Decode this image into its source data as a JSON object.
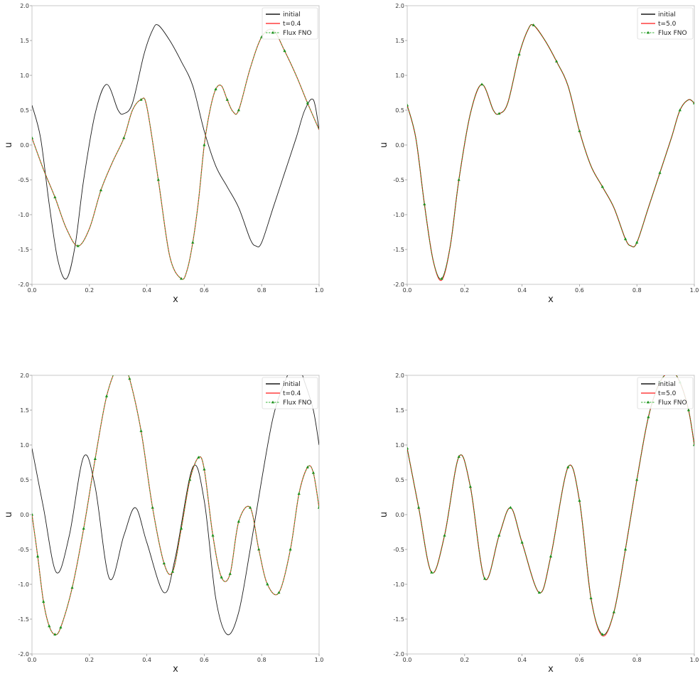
{
  "colors": {
    "initial": "#000000",
    "reference": "#ff0000",
    "fno": "#22aa22",
    "fno_marker": "#1a8f1a",
    "axes": "#999999",
    "frame": "#bbbbbb"
  },
  "chart_data": [
    {
      "type": "line",
      "xlabel": "x",
      "ylabel": "u",
      "xlim": [
        0,
        1
      ],
      "ylim": [
        -2,
        2
      ],
      "xticks": [
        "0.0",
        "0.2",
        "0.4",
        "0.6",
        "0.8",
        "1.0"
      ],
      "yticks": [
        "-2.0",
        "-1.5",
        "-1.0",
        "-0.5",
        "0.0",
        "0.5",
        "1.0",
        "1.5",
        "2.0"
      ],
      "legend_position": "top-right",
      "series": [
        {
          "name": "initial",
          "x": [
            0.0,
            0.03,
            0.06,
            0.09,
            0.12,
            0.15,
            0.18,
            0.22,
            0.26,
            0.3,
            0.32,
            0.35,
            0.39,
            0.42,
            0.44,
            0.48,
            0.52,
            0.56,
            0.6,
            0.64,
            0.68,
            0.72,
            0.76,
            0.78,
            0.8,
            0.84,
            0.88,
            0.92,
            0.95,
            0.98,
            1.0
          ],
          "y": [
            0.57,
            0.1,
            -0.85,
            -1.65,
            -1.92,
            -1.45,
            -0.5,
            0.45,
            0.87,
            0.5,
            0.45,
            0.6,
            1.3,
            1.65,
            1.72,
            1.5,
            1.2,
            0.85,
            0.2,
            -0.3,
            -0.6,
            -0.9,
            -1.35,
            -1.45,
            -1.4,
            -0.9,
            -0.4,
            0.1,
            0.5,
            0.65,
            0.22
          ]
        },
        {
          "name": "t=0.4",
          "x": [
            0.0,
            0.04,
            0.08,
            0.12,
            0.16,
            0.2,
            0.24,
            0.28,
            0.32,
            0.35,
            0.38,
            0.4,
            0.44,
            0.48,
            0.52,
            0.54,
            0.56,
            0.58,
            0.6,
            0.62,
            0.64,
            0.66,
            0.68,
            0.7,
            0.72,
            0.76,
            0.8,
            0.84,
            0.88,
            0.92,
            0.96,
            1.0
          ],
          "y": [
            0.1,
            -0.35,
            -0.75,
            -1.2,
            -1.45,
            -1.2,
            -0.65,
            -0.25,
            0.1,
            0.5,
            0.65,
            0.55,
            -0.5,
            -1.6,
            -1.92,
            -1.8,
            -1.4,
            -0.8,
            0.0,
            0.5,
            0.8,
            0.85,
            0.65,
            0.48,
            0.5,
            1.1,
            1.55,
            1.65,
            1.35,
            1.0,
            0.6,
            0.22
          ]
        },
        {
          "name": "Flux FNO",
          "x": [
            0.0,
            0.04,
            0.08,
            0.12,
            0.16,
            0.2,
            0.24,
            0.28,
            0.32,
            0.35,
            0.38,
            0.4,
            0.44,
            0.48,
            0.52,
            0.54,
            0.56,
            0.58,
            0.6,
            0.62,
            0.64,
            0.66,
            0.68,
            0.7,
            0.72,
            0.76,
            0.8,
            0.84,
            0.88,
            0.92,
            0.96,
            1.0
          ],
          "y": [
            0.1,
            -0.35,
            -0.75,
            -1.2,
            -1.45,
            -1.2,
            -0.65,
            -0.25,
            0.1,
            0.5,
            0.65,
            0.55,
            -0.5,
            -1.6,
            -1.92,
            -1.8,
            -1.4,
            -0.8,
            0.0,
            0.5,
            0.8,
            0.85,
            0.65,
            0.48,
            0.5,
            1.1,
            1.55,
            1.65,
            1.35,
            1.0,
            0.6,
            0.22
          ]
        }
      ]
    },
    {
      "type": "line",
      "xlabel": "x",
      "ylabel": "u",
      "xlim": [
        0,
        1
      ],
      "ylim": [
        -2,
        2
      ],
      "xticks": [
        "0.0",
        "0.2",
        "0.4",
        "0.6",
        "0.8",
        "1.0"
      ],
      "yticks": [
        "-2.0",
        "-1.5",
        "-1.0",
        "-0.5",
        "0.0",
        "0.5",
        "1.0",
        "1.5",
        "2.0"
      ],
      "legend_position": "top-right",
      "series": [
        {
          "name": "initial",
          "x": [
            0.0,
            0.03,
            0.06,
            0.09,
            0.12,
            0.15,
            0.18,
            0.22,
            0.26,
            0.3,
            0.32,
            0.35,
            0.39,
            0.42,
            0.44,
            0.48,
            0.52,
            0.56,
            0.6,
            0.64,
            0.68,
            0.72,
            0.76,
            0.78,
            0.8,
            0.84,
            0.88,
            0.92,
            0.95,
            0.98,
            1.0
          ],
          "y": [
            0.57,
            0.1,
            -0.85,
            -1.65,
            -1.92,
            -1.45,
            -0.5,
            0.45,
            0.87,
            0.5,
            0.45,
            0.6,
            1.3,
            1.65,
            1.72,
            1.5,
            1.2,
            0.85,
            0.2,
            -0.3,
            -0.6,
            -0.9,
            -1.35,
            -1.45,
            -1.4,
            -0.9,
            -0.4,
            0.1,
            0.5,
            0.65,
            0.6
          ]
        },
        {
          "name": "t=5.0",
          "x": [
            0.0,
            0.03,
            0.06,
            0.09,
            0.12,
            0.15,
            0.18,
            0.22,
            0.26,
            0.3,
            0.32,
            0.35,
            0.39,
            0.42,
            0.44,
            0.48,
            0.52,
            0.56,
            0.6,
            0.64,
            0.68,
            0.72,
            0.76,
            0.78,
            0.8,
            0.84,
            0.88,
            0.92,
            0.95,
            0.98,
            1.0
          ],
          "y": [
            0.57,
            0.1,
            -0.85,
            -1.65,
            -1.94,
            -1.45,
            -0.5,
            0.45,
            0.87,
            0.5,
            0.45,
            0.6,
            1.3,
            1.65,
            1.72,
            1.5,
            1.2,
            0.85,
            0.2,
            -0.3,
            -0.6,
            -0.9,
            -1.35,
            -1.45,
            -1.4,
            -0.9,
            -0.4,
            0.1,
            0.5,
            0.65,
            0.6
          ]
        },
        {
          "name": "Flux FNO",
          "x": [
            0.0,
            0.03,
            0.06,
            0.09,
            0.12,
            0.15,
            0.18,
            0.22,
            0.26,
            0.3,
            0.32,
            0.35,
            0.39,
            0.42,
            0.44,
            0.48,
            0.52,
            0.56,
            0.6,
            0.64,
            0.68,
            0.72,
            0.76,
            0.78,
            0.8,
            0.84,
            0.88,
            0.92,
            0.95,
            0.98,
            1.0
          ],
          "y": [
            0.57,
            0.1,
            -0.85,
            -1.65,
            -1.92,
            -1.45,
            -0.5,
            0.45,
            0.87,
            0.5,
            0.45,
            0.6,
            1.3,
            1.65,
            1.72,
            1.5,
            1.2,
            0.85,
            0.2,
            -0.3,
            -0.6,
            -0.9,
            -1.35,
            -1.45,
            -1.4,
            -0.9,
            -0.4,
            0.1,
            0.5,
            0.65,
            0.6
          ]
        }
      ]
    },
    {
      "type": "line",
      "xlabel": "x",
      "ylabel": "u",
      "xlim": [
        0,
        1
      ],
      "ylim": [
        -2,
        2
      ],
      "xticks": [
        "0.0",
        "0.2",
        "0.4",
        "0.6",
        "0.8",
        "1.0"
      ],
      "yticks": [
        "-2.0",
        "-1.5",
        "-1.0",
        "-0.5",
        "0.0",
        "0.5",
        "1.0",
        "1.5",
        "2.0"
      ],
      "legend_position": "top-right",
      "series": [
        {
          "name": "initial",
          "x": [
            0.0,
            0.04,
            0.085,
            0.13,
            0.18,
            0.22,
            0.27,
            0.32,
            0.36,
            0.4,
            0.46,
            0.5,
            0.56,
            0.6,
            0.64,
            0.68,
            0.72,
            0.76,
            0.8,
            0.84,
            0.88,
            0.92,
            0.95,
            0.98,
            1.0
          ],
          "y": [
            0.95,
            0.1,
            -0.83,
            -0.3,
            0.83,
            0.4,
            -0.92,
            -0.3,
            0.1,
            -0.4,
            -1.12,
            -0.6,
            0.68,
            0.2,
            -1.2,
            -1.72,
            -1.4,
            -0.5,
            0.5,
            1.4,
            1.9,
            2.2,
            1.9,
            1.5,
            1.0
          ]
        },
        {
          "name": "t=0.4",
          "x": [
            0.0,
            0.02,
            0.04,
            0.06,
            0.08,
            0.1,
            0.14,
            0.18,
            0.22,
            0.26,
            0.3,
            0.32,
            0.34,
            0.38,
            0.42,
            0.46,
            0.49,
            0.52,
            0.55,
            0.58,
            0.6,
            0.63,
            0.66,
            0.69,
            0.72,
            0.76,
            0.79,
            0.82,
            0.86,
            0.9,
            0.93,
            0.96,
            0.98,
            1.0
          ],
          "y": [
            0.0,
            -0.6,
            -1.25,
            -1.6,
            -1.72,
            -1.62,
            -1.05,
            -0.2,
            0.8,
            1.7,
            2.15,
            2.1,
            1.95,
            1.2,
            0.1,
            -0.7,
            -0.82,
            -0.2,
            0.5,
            0.82,
            0.65,
            -0.3,
            -0.9,
            -0.85,
            -0.1,
            0.1,
            -0.5,
            -1.0,
            -1.12,
            -0.5,
            0.3,
            0.68,
            0.6,
            0.1
          ]
        },
        {
          "name": "Flux FNO",
          "x": [
            0.0,
            0.02,
            0.04,
            0.06,
            0.08,
            0.1,
            0.14,
            0.18,
            0.22,
            0.26,
            0.3,
            0.32,
            0.34,
            0.38,
            0.42,
            0.46,
            0.49,
            0.52,
            0.55,
            0.58,
            0.6,
            0.63,
            0.66,
            0.69,
            0.72,
            0.76,
            0.79,
            0.82,
            0.86,
            0.9,
            0.93,
            0.96,
            0.98,
            1.0
          ],
          "y": [
            0.0,
            -0.6,
            -1.25,
            -1.6,
            -1.72,
            -1.62,
            -1.05,
            -0.2,
            0.8,
            1.7,
            2.15,
            2.1,
            1.95,
            1.2,
            0.1,
            -0.7,
            -0.82,
            -0.2,
            0.5,
            0.82,
            0.65,
            -0.3,
            -0.9,
            -0.85,
            -0.1,
            0.1,
            -0.5,
            -1.0,
            -1.12,
            -0.5,
            0.3,
            0.68,
            0.6,
            0.1
          ]
        }
      ]
    },
    {
      "type": "line",
      "xlabel": "x",
      "ylabel": "u",
      "xlim": [
        0,
        1
      ],
      "ylim": [
        -2,
        2
      ],
      "xticks": [
        "0.0",
        "0.2",
        "0.4",
        "0.6",
        "0.8",
        "1.0"
      ],
      "yticks": [
        "-2.0",
        "-1.5",
        "-1.0",
        "-0.5",
        "0.0",
        "0.5",
        "1.0",
        "1.5",
        "2.0"
      ],
      "legend_position": "top-right",
      "series": [
        {
          "name": "initial",
          "x": [
            0.0,
            0.04,
            0.085,
            0.13,
            0.18,
            0.22,
            0.27,
            0.32,
            0.36,
            0.4,
            0.46,
            0.5,
            0.56,
            0.6,
            0.64,
            0.68,
            0.72,
            0.76,
            0.8,
            0.84,
            0.88,
            0.92,
            0.95,
            0.98,
            1.0
          ],
          "y": [
            0.95,
            0.1,
            -0.83,
            -0.3,
            0.83,
            0.4,
            -0.92,
            -0.3,
            0.1,
            -0.4,
            -1.12,
            -0.6,
            0.68,
            0.2,
            -1.2,
            -1.72,
            -1.4,
            -0.5,
            0.5,
            1.4,
            1.9,
            2.05,
            1.9,
            1.5,
            1.0
          ]
        },
        {
          "name": "t=5.0",
          "x": [
            0.0,
            0.04,
            0.085,
            0.13,
            0.18,
            0.22,
            0.27,
            0.32,
            0.36,
            0.4,
            0.46,
            0.5,
            0.56,
            0.6,
            0.64,
            0.68,
            0.72,
            0.76,
            0.8,
            0.84,
            0.88,
            0.92,
            0.95,
            0.98,
            1.0
          ],
          "y": [
            0.95,
            0.1,
            -0.83,
            -0.3,
            0.83,
            0.4,
            -0.92,
            -0.3,
            0.1,
            -0.4,
            -1.12,
            -0.6,
            0.68,
            0.2,
            -1.2,
            -1.74,
            -1.4,
            -0.5,
            0.5,
            1.4,
            1.9,
            2.05,
            1.9,
            1.5,
            1.0
          ]
        },
        {
          "name": "Flux FNO",
          "x": [
            0.0,
            0.04,
            0.085,
            0.13,
            0.18,
            0.22,
            0.27,
            0.32,
            0.36,
            0.4,
            0.46,
            0.5,
            0.56,
            0.6,
            0.64,
            0.68,
            0.72,
            0.76,
            0.8,
            0.84,
            0.88,
            0.92,
            0.95,
            0.98,
            1.0
          ],
          "y": [
            0.95,
            0.1,
            -0.83,
            -0.3,
            0.83,
            0.4,
            -0.92,
            -0.3,
            0.1,
            -0.4,
            -1.12,
            -0.6,
            0.68,
            0.2,
            -1.2,
            -1.72,
            -1.4,
            -0.5,
            0.5,
            1.4,
            1.9,
            2.05,
            1.9,
            1.5,
            1.0
          ]
        }
      ]
    }
  ]
}
